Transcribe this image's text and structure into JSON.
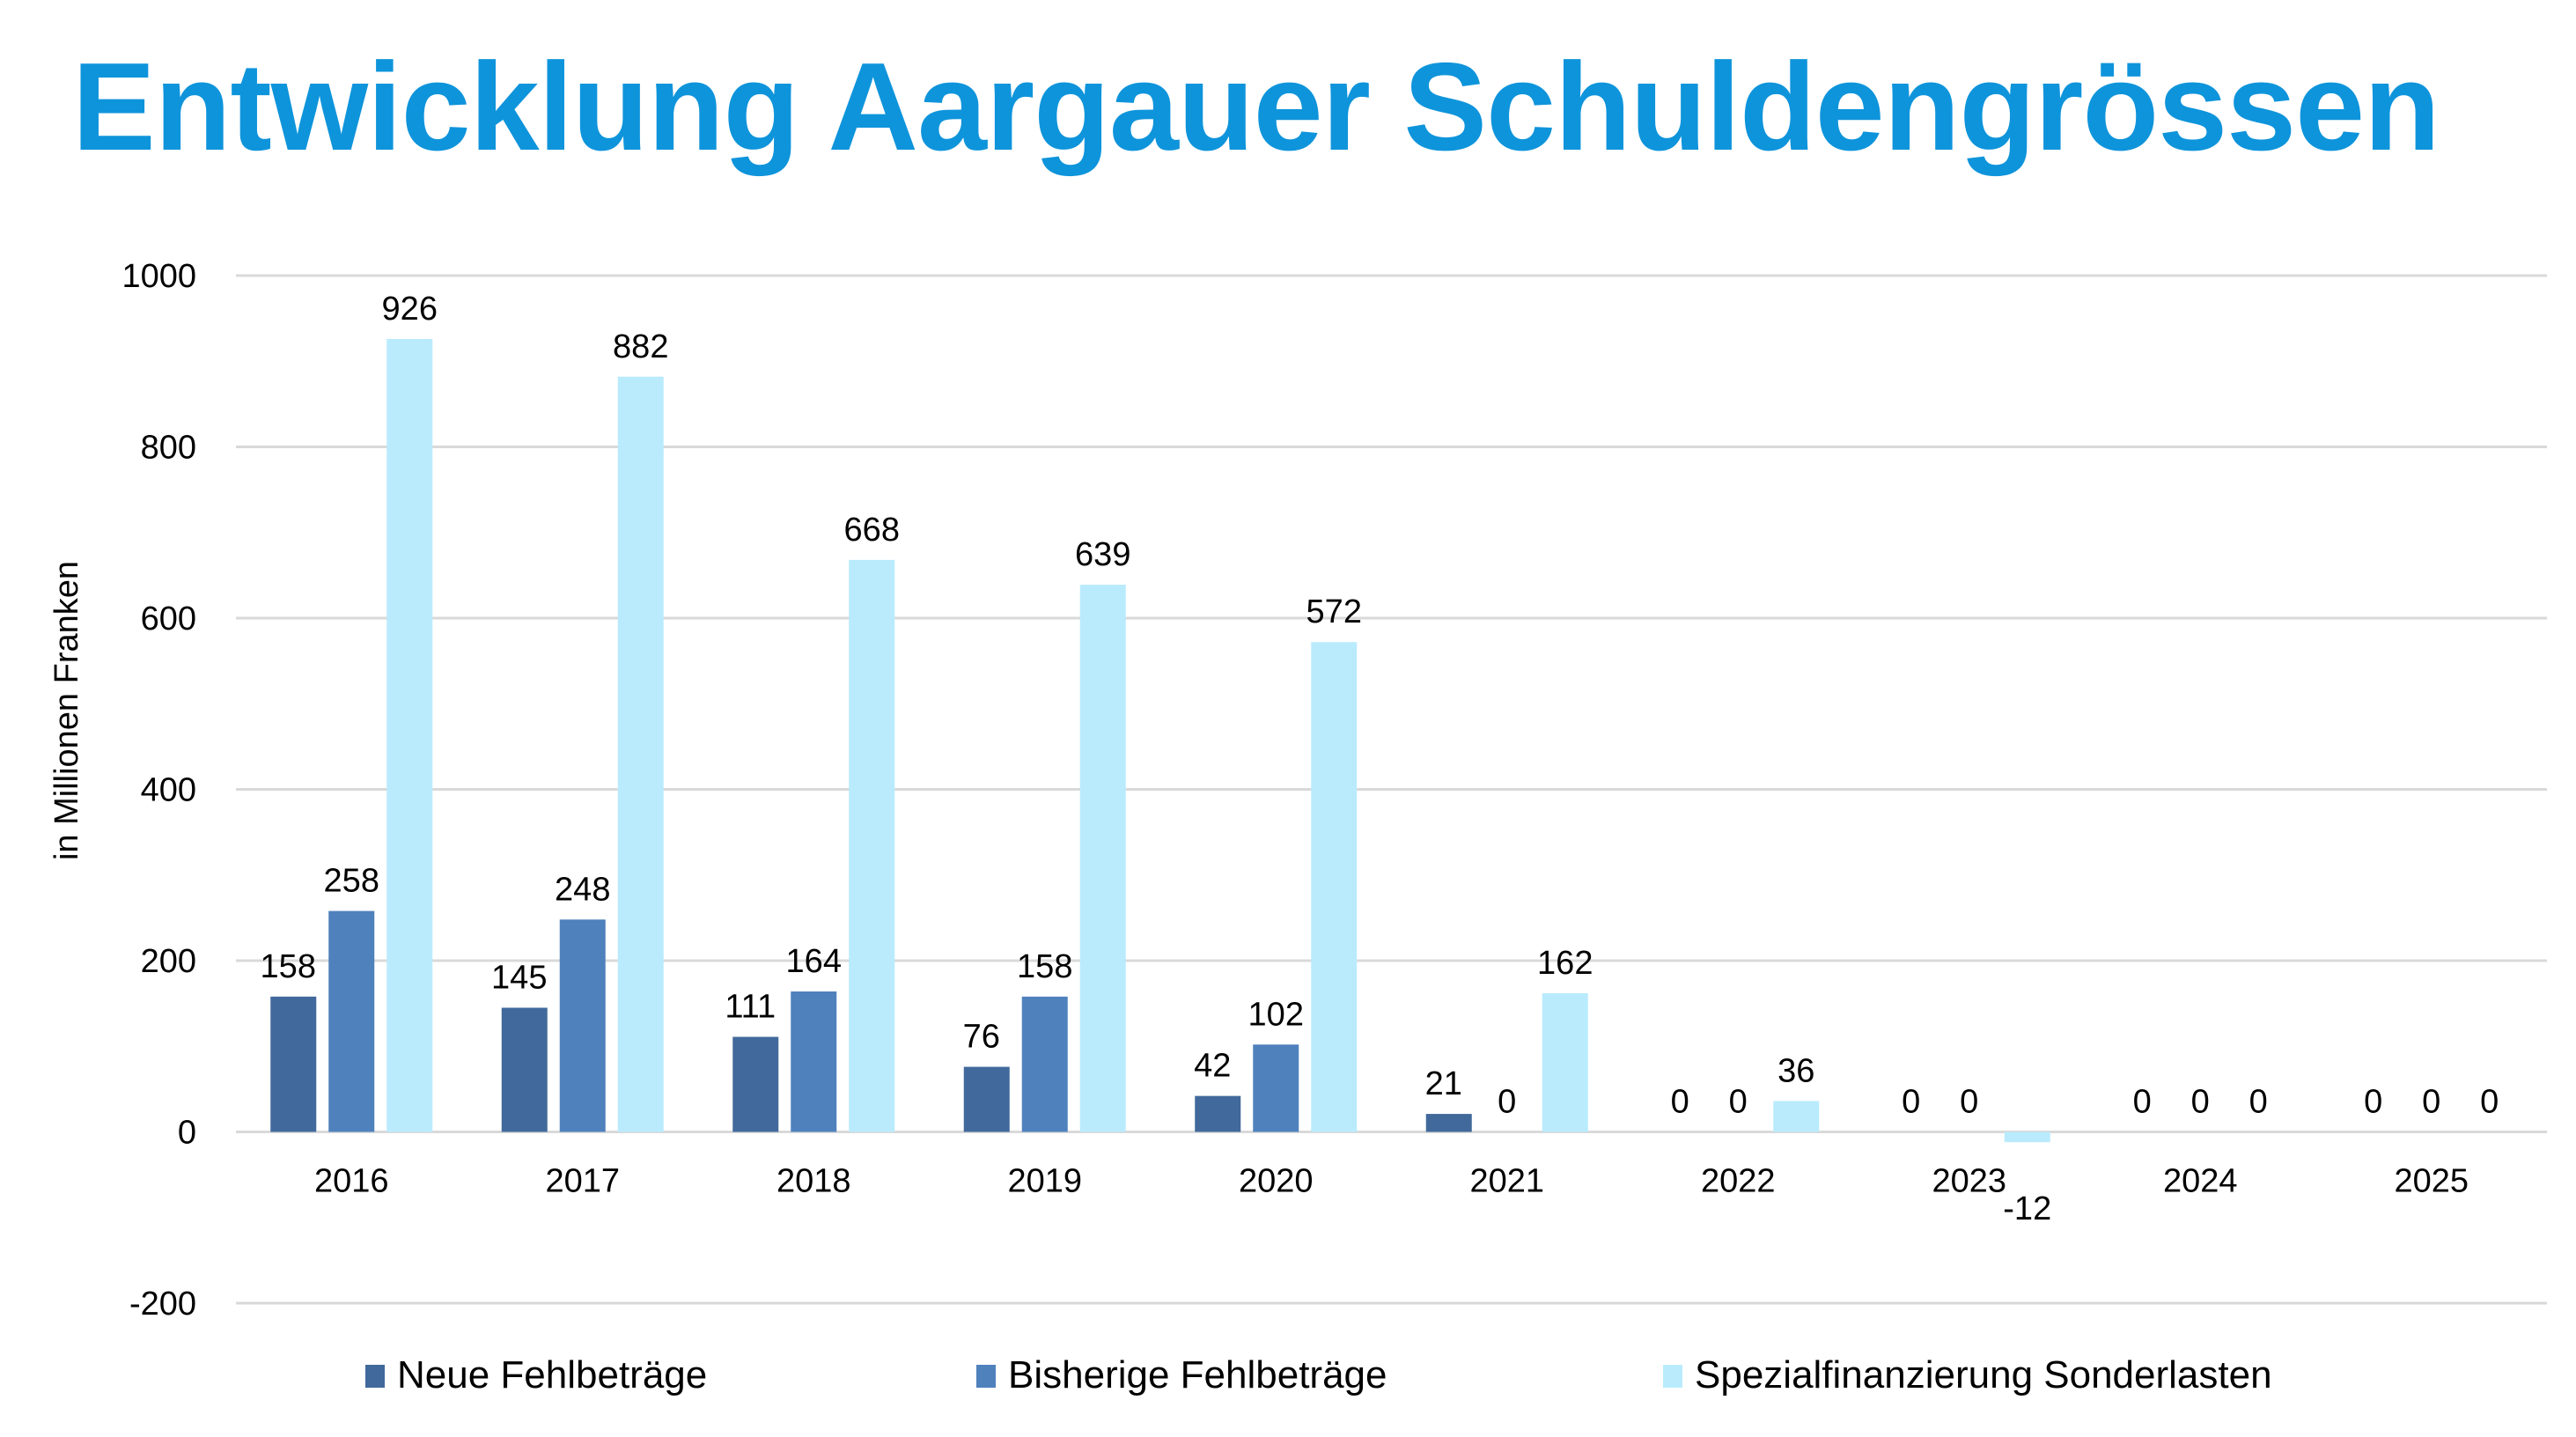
{
  "chart_data": {
    "type": "bar",
    "title": "Entwicklung Aargauer Schuldengrössen",
    "xlabel": "",
    "ylabel": "in Millionen Franken",
    "ylim": [
      -200,
      1000
    ],
    "yticks": [
      -200,
      0,
      200,
      400,
      600,
      800,
      1000
    ],
    "grid": true,
    "legend_position": "bottom",
    "categories": [
      "2016",
      "2017",
      "2018",
      "2019",
      "2020",
      "2021",
      "2022",
      "2023",
      "2024",
      "2025"
    ],
    "series": [
      {
        "name": "Neue Fehlbeträge",
        "color": "#41699B",
        "values": [
          158,
          145,
          111,
          76,
          42,
          21,
          0,
          0,
          0,
          0
        ]
      },
      {
        "name": "Bisherige Fehlbeträge",
        "color": "#4F81BD",
        "values": [
          258,
          248,
          164,
          158,
          102,
          0,
          0,
          0,
          0,
          0
        ]
      },
      {
        "name": "Spezialfinanzierung Sonderlasten",
        "color": "#B9EBFD",
        "values": [
          926,
          882,
          668,
          639,
          572,
          162,
          36,
          -12,
          0,
          0
        ]
      }
    ],
    "label_visible": [
      [
        true,
        true,
        true,
        true,
        true,
        true,
        true,
        true,
        true,
        true
      ],
      [
        true,
        true,
        true,
        true,
        true,
        true,
        true,
        true,
        true,
        true
      ],
      [
        true,
        true,
        true,
        true,
        true,
        true,
        true,
        true,
        true,
        true
      ]
    ]
  }
}
